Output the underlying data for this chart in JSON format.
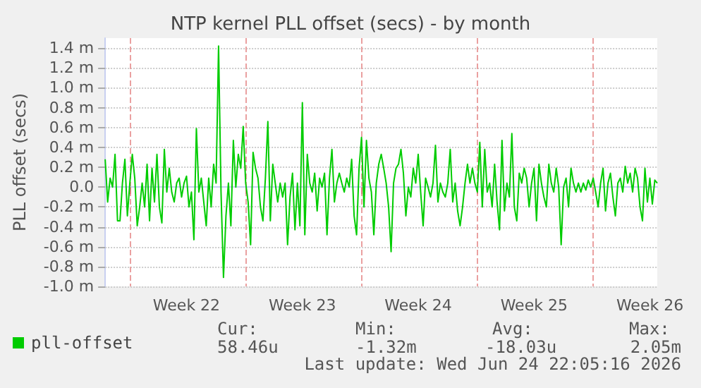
{
  "chart_data": {
    "type": "line",
    "title": "NTP kernel PLL offset (secs) - by month",
    "ylabel": "PLL offset (secs)",
    "categories": [
      null,
      null,
      null,
      null,
      null,
      null,
      null,
      null,
      null,
      null,
      null,
      null,
      null,
      null,
      null,
      null,
      null,
      null,
      null,
      null,
      null,
      null,
      null,
      null,
      null,
      null,
      null,
      null,
      null,
      null,
      null,
      null,
      null,
      "Week 22",
      null,
      null,
      null,
      null,
      null,
      null,
      null,
      null,
      null,
      null,
      null,
      null,
      null,
      null,
      null,
      null,
      null,
      null,
      null,
      null,
      null,
      null,
      null,
      null,
      null,
      null,
      null,
      null,
      null,
      null,
      null,
      null,
      null,
      null,
      null,
      null,
      null,
      null,
      null,
      null,
      null,
      null,
      null,
      null,
      null,
      null,
      "Week 23",
      null,
      null,
      null,
      null,
      null,
      null,
      null,
      null,
      null,
      null,
      null,
      null,
      null,
      null,
      null,
      null,
      null,
      null,
      null,
      null,
      null,
      null,
      null,
      null,
      null,
      null,
      null,
      null,
      null,
      null,
      null,
      null,
      null,
      null,
      null,
      null,
      null,
      null,
      null,
      null,
      null,
      null,
      null,
      null,
      null,
      null,
      "Week 24",
      null,
      null,
      null,
      null,
      null,
      null,
      null,
      null,
      null,
      null,
      null,
      null,
      null,
      null,
      null,
      null,
      null,
      null,
      null,
      null,
      null,
      null,
      null,
      null,
      null,
      null,
      null,
      null,
      null,
      null,
      null,
      null,
      null,
      null,
      null,
      null,
      null,
      null,
      null,
      null,
      null,
      null,
      null,
      null,
      null,
      null,
      "Week 25",
      null,
      null,
      null,
      null,
      null,
      null,
      null,
      null,
      null,
      null,
      null,
      null,
      null,
      null,
      null,
      null,
      null,
      null,
      null,
      null,
      null,
      null,
      null,
      null,
      null,
      null,
      null,
      null,
      null,
      null,
      null,
      null,
      null,
      null,
      null,
      null,
      null,
      null,
      null,
      null,
      null,
      null,
      null,
      null,
      null,
      null,
      "Week 26",
      null,
      null,
      null
    ],
    "ylim": [
      -1.0,
      1.5
    ],
    "yticks": [
      {
        "value": -1.0,
        "label": "-1.0 m"
      },
      {
        "value": -0.8,
        "label": "-0.8 m"
      },
      {
        "value": -0.6,
        "label": "-0.6 m"
      },
      {
        "value": -0.4,
        "label": "-0.4 m"
      },
      {
        "value": -0.2,
        "label": "-0.2 m"
      },
      {
        "value": 0,
        "label": "0.0"
      },
      {
        "value": 0.2,
        "label": "0.2 m"
      },
      {
        "value": 0.4,
        "label": "0.4 m"
      },
      {
        "value": 0.6,
        "label": "0.6 m"
      },
      {
        "value": 0.8,
        "label": "0.8 m"
      },
      {
        "value": 1.0,
        "label": "1.0 m"
      },
      {
        "value": 1.2,
        "label": "1.2 m"
      },
      {
        "value": 1.4,
        "label": "1.4 m"
      }
    ],
    "grid": true,
    "legend": "bottom left",
    "marker": "none",
    "line_style": "solid",
    "series": [
      {
        "name": "pll-offset",
        "color": "#00cc00",
        "values": [
          0.28,
          -0.15,
          0.09,
          0.0,
          0.33,
          -0.34,
          -0.34,
          0.04,
          0.28,
          -0.29,
          0.04,
          0.33,
          0.09,
          -0.39,
          -0.2,
          0.04,
          -0.2,
          0.23,
          -0.34,
          0.19,
          -0.15,
          0.33,
          -0.2,
          -0.36,
          0.38,
          -0.05,
          0.19,
          -0.05,
          -0.15,
          0.04,
          0.09,
          -0.1,
          0.04,
          0.11,
          -0.2,
          -0.05,
          -0.53,
          0.59,
          -0.05,
          0.09,
          -0.15,
          -0.39,
          0.09,
          -0.2,
          0.23,
          0.04,
          1.42,
          -0.05,
          -0.91,
          -0.29,
          0.04,
          -0.39,
          0.47,
          0.0,
          0.33,
          0.19,
          0.61,
          0.04,
          -0.15,
          -0.58,
          0.35,
          0.19,
          0.09,
          -0.2,
          -0.34,
          0.09,
          0.66,
          -0.34,
          0.23,
          0.04,
          -0.15,
          0.04,
          -0.1,
          0.04,
          -0.58,
          -0.1,
          0.14,
          -0.43,
          0.04,
          -0.39,
          0.85,
          -0.48,
          0.33,
          0.04,
          -0.05,
          0.14,
          -0.24,
          0.09,
          0.0,
          0.14,
          -0.48,
          0.09,
          0.38,
          -0.15,
          0.04,
          0.14,
          0.04,
          -0.05,
          0.09,
          0.0,
          0.28,
          -0.29,
          -0.48,
          0.19,
          0.5,
          -0.2,
          0.47,
          0.09,
          -0.05,
          -0.48,
          0.04,
          0.23,
          0.33,
          0.19,
          0.04,
          -0.2,
          -0.65,
          0.04,
          0.19,
          0.23,
          0.38,
          0.14,
          -0.29,
          0.0,
          -0.1,
          0.19,
          0.04,
          0.33,
          -0.05,
          -0.39,
          0.09,
          0.0,
          -0.1,
          0.04,
          0.42,
          -0.15,
          0.04,
          -0.05,
          -0.1,
          0.04,
          0.38,
          -0.15,
          0.04,
          -0.24,
          -0.39,
          -0.2,
          0.04,
          0.23,
          0.04,
          0.19,
          0.04,
          -0.05,
          0.45,
          -0.2,
          0.38,
          -0.05,
          0.04,
          -0.2,
          0.23,
          -0.15,
          -0.43,
          0.47,
          -0.24,
          0.04,
          -0.1,
          0.54,
          -0.2,
          -0.34,
          0.14,
          0.04,
          0.19,
          0.09,
          -0.2,
          0.04,
          0.19,
          -0.34,
          0.23,
          0.04,
          -0.1,
          -0.2,
          0.23,
          0.04,
          -0.05,
          0.19,
          0.0,
          -0.58,
          0.0,
          0.09,
          -0.2,
          0.19,
          0.04,
          -0.05,
          0.04,
          -0.05,
          0.04,
          -0.03,
          0.07,
          0.0,
          0.09,
          -0.05,
          -0.2,
          0.04,
          0.19,
          -0.24,
          0.04,
          0.14,
          -0.1,
          -0.29,
          0.04,
          0.09,
          -0.05,
          0.21,
          0.04,
          0.14,
          -0.05,
          0.19,
          0.09,
          -0.2,
          -0.34,
          0.19,
          -0.15,
          0.09,
          -0.17,
          0.07,
          0.04
        ]
      }
    ],
    "annotations": [
      "Cur:",
      "Min:",
      "Avg:",
      "Max:",
      "58.46u",
      "-1.32m",
      "-18.03u",
      "2.05m",
      "Last update: Wed Jun 24 22:05:16 2026"
    ]
  }
}
